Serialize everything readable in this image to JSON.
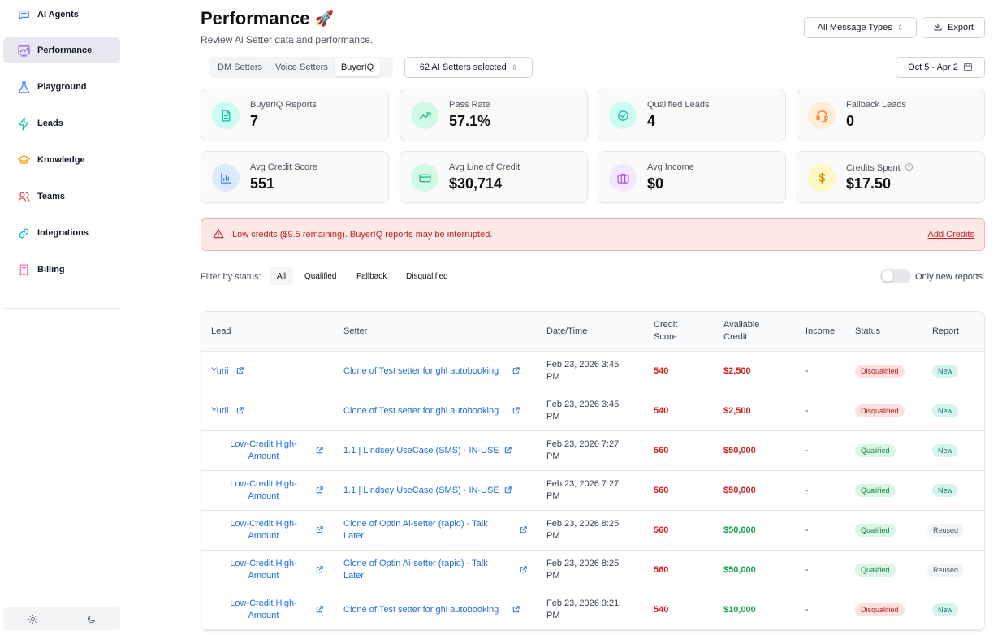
{
  "sidebar": {
    "items": [
      {
        "label": "AI Agents",
        "icon": "chat-icon"
      },
      {
        "label": "Performance",
        "icon": "chart-icon",
        "active": true
      },
      {
        "label": "Playground",
        "icon": "flask-icon"
      },
      {
        "label": "Leads",
        "icon": "bolt-icon"
      },
      {
        "label": "Knowledge",
        "icon": "graduation-cap-icon"
      },
      {
        "label": "Teams",
        "icon": "users-icon"
      },
      {
        "label": "Integrations",
        "icon": "link-icon"
      },
      {
        "label": "Billing",
        "icon": "receipt-icon"
      }
    ],
    "theme": {
      "light_icon": "sun-icon",
      "dark_icon": "moon-icon"
    }
  },
  "header": {
    "title": "Performance",
    "title_emoji": "🚀",
    "subtitle": "Review Ai Setter data and performance.",
    "message_types": "All Message Types",
    "export_label": "Export",
    "date_range": "Oct 5 - Apr 2"
  },
  "tabs": {
    "items": [
      "DM Setters",
      "Voice Setters",
      "BuyerIQ"
    ],
    "active": "BuyerIQ"
  },
  "setters_select": "62 AI Setters selected",
  "stats": [
    {
      "label": "BuyerIQ Reports",
      "value": "7",
      "icon": "document-icon",
      "color": "#14b8a6",
      "bg": "#ccfbf1"
    },
    {
      "label": "Pass Rate",
      "value": "57.1%",
      "icon": "trending-up-icon",
      "color": "#10b981",
      "bg": "#d1fae5"
    },
    {
      "label": "Qualified Leads",
      "value": "4",
      "icon": "check-circle-icon",
      "color": "#14b8a6",
      "bg": "#ccfbf1"
    },
    {
      "label": "Fallback Leads",
      "value": "0",
      "icon": "headset-icon",
      "color": "#f97316",
      "bg": "#ffedd5"
    },
    {
      "label": "Avg Credit Score",
      "value": "551",
      "icon": "bar-chart-icon",
      "color": "#3b82f6",
      "bg": "#dbeafe"
    },
    {
      "label": "Avg Line of Credit",
      "value": "$30,714",
      "icon": "credit-card-icon",
      "color": "#10b981",
      "bg": "#d1fae5"
    },
    {
      "label": "Avg Income",
      "value": "$0",
      "icon": "briefcase-icon",
      "color": "#a855f7",
      "bg": "#f3e8ff"
    },
    {
      "label": "Credits Spent",
      "value": "$17.50",
      "icon": "dollar-icon",
      "color": "#ca8a04",
      "bg": "#fef9c3"
    }
  ],
  "alert": {
    "text": "Low credits ($9.5 remaining). BuyerIQ reports may be interrupted.",
    "link": "Add Credits"
  },
  "filter": {
    "label": "Filter by status:",
    "options": [
      "All",
      "Qualified",
      "Fallback",
      "Disqualified"
    ],
    "active": "All",
    "toggle_label": "Only new reports"
  },
  "table": {
    "columns": {
      "lead": "Lead",
      "setter": "Setter",
      "datetime": "Date/Time",
      "credit_score_1": "Credit",
      "credit_score_2": "Score",
      "available_credit_1": "Available",
      "available_credit_2": "Credit",
      "income": "Income",
      "status": "Status",
      "report": "Report"
    },
    "rows": [
      {
        "lead_1": "Yurii",
        "lead_2": "",
        "setter_1": "Clone of Test setter for ghl autobooking",
        "setter_2": "",
        "date_1": "Feb 23, 2026 3:45",
        "date_2": "PM",
        "score": "540",
        "credit": "$2,500",
        "credit_color": "red",
        "income": "-",
        "status": "Disqualified",
        "report": "New"
      },
      {
        "lead_1": "Yurii",
        "lead_2": "",
        "setter_1": "Clone of Test setter for ghl autobooking",
        "setter_2": "",
        "date_1": "Feb 23, 2026 3:45",
        "date_2": "PM",
        "score": "540",
        "credit": "$2,500",
        "credit_color": "red",
        "income": "-",
        "status": "Disqualified",
        "report": "New"
      },
      {
        "lead_1": "Low-Credit High-",
        "lead_2": "Amount",
        "setter_1": "1.1 | Lindsey UseCase (SMS) - IN-USE",
        "setter_2": "",
        "date_1": "Feb 23, 2026 7:27",
        "date_2": "PM",
        "score": "560",
        "credit": "$50,000",
        "credit_color": "red",
        "income": "-",
        "status": "Qualified",
        "report": "New"
      },
      {
        "lead_1": "Low-Credit High-",
        "lead_2": "Amount",
        "setter_1": "1.1 | Lindsey UseCase (SMS) - IN-USE",
        "setter_2": "",
        "date_1": "Feb 23, 2026 7:27",
        "date_2": "PM",
        "score": "560",
        "credit": "$50,000",
        "credit_color": "red",
        "income": "-",
        "status": "Qualified",
        "report": "New"
      },
      {
        "lead_1": "Low-Credit High-",
        "lead_2": "Amount",
        "setter_1": "Clone of Optin Ai-setter (rapid) - Talk",
        "setter_2": "Later",
        "date_1": "Feb 23, 2026 8:25",
        "date_2": "PM",
        "score": "560",
        "credit": "$50,000",
        "credit_color": "green",
        "income": "-",
        "status": "Qualified",
        "report": "Reused"
      },
      {
        "lead_1": "Low-Credit High-",
        "lead_2": "Amount",
        "setter_1": "Clone of Optin Ai-setter (rapid) - Talk",
        "setter_2": "Later",
        "date_1": "Feb 23, 2026 8:25",
        "date_2": "PM",
        "score": "560",
        "credit": "$50,000",
        "credit_color": "green",
        "income": "-",
        "status": "Qualified",
        "report": "Reused"
      },
      {
        "lead_1": "Low-Credit High-",
        "lead_2": "Amount",
        "setter_1": "Clone of Test setter for ghl autobooking",
        "setter_2": "",
        "date_1": "Feb 23, 2026 9:21",
        "date_2": "PM",
        "score": "540",
        "credit": "$10,000",
        "credit_color": "green",
        "income": "-",
        "status": "Disqualified",
        "report": "New"
      }
    ]
  }
}
